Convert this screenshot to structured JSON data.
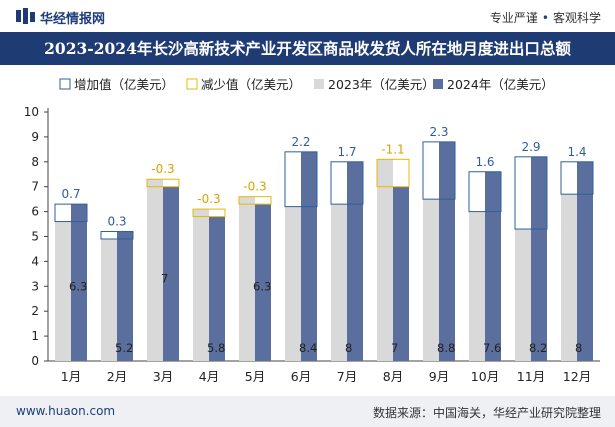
{
  "header": {
    "brand": "华经情报网",
    "tag1": "专业严谨",
    "tag2": "客观科学"
  },
  "title": "2023-2024年长沙高新技术产业开发区商品收发货人所在地月度进出口总额",
  "footer": {
    "url": "www.huaon.com",
    "source": "数据来源：中国海关，华经产业研究院整理"
  },
  "colors": {
    "series2023": "#d9d9d9",
    "series2024": "#5a6f9e",
    "increase": "#2e5f9c",
    "decrease": "#e8b800",
    "brand": "#1f3b73"
  },
  "chart_data": {
    "type": "bar",
    "categories": [
      "1月",
      "2月",
      "3月",
      "4月",
      "5月",
      "6月",
      "7月",
      "8月",
      "9月",
      "10月",
      "11月",
      "12月"
    ],
    "series": [
      {
        "name": "2023年（亿美元）",
        "values": [
          5.6,
          4.9,
          7.3,
          6.1,
          6.6,
          6.2,
          6.3,
          8.1,
          6.5,
          6.0,
          5.3,
          6.7
        ]
      },
      {
        "name": "2024年（亿美元）",
        "values": [
          6.3,
          5.2,
          7,
          5.8,
          6.3,
          8.4,
          8,
          7,
          8.8,
          7.6,
          8.2,
          8
        ]
      }
    ],
    "change_legend": [
      "增加值（亿美元）",
      "减少值（亿美元）"
    ],
    "change_labels": [
      "0.7",
      "0.3",
      "-0.3",
      "-0.3",
      "-0.3",
      "2.2",
      "1.7",
      "-1.1",
      "2.3",
      "1.6",
      "2.9",
      "1.4"
    ],
    "ylim": [
      0,
      10
    ],
    "yticks": [
      0,
      1,
      2,
      3,
      4,
      5,
      6,
      7,
      8,
      9,
      10
    ],
    "legend_position": "top-left",
    "grid": false
  }
}
